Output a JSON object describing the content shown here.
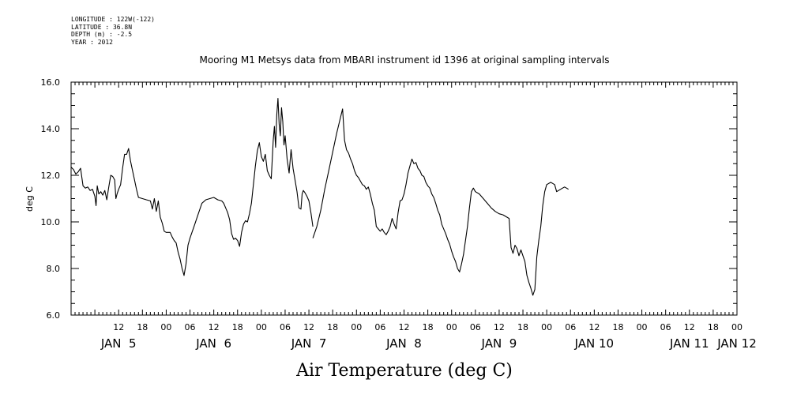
{
  "header": {
    "lines": [
      "LONGITUDE : 122W(-122)",
      "LATITUDE : 36.8N",
      "DEPTH (m) : -2.5",
      "YEAR : 2012"
    ]
  },
  "chart_data": {
    "type": "line",
    "title": "Mooring M1 Metsys data from MBARI instrument id 1396 at original sampling intervals",
    "xlabel": "Air Temperature (deg C)",
    "ylabel": "deg C",
    "ylim": [
      6.0,
      16.0
    ],
    "xlim_hours": [
      96,
      264
    ],
    "y_ticks": [
      "6.0",
      "8.0",
      "10.0",
      "12.0",
      "14.0",
      "16.0"
    ],
    "x_hour_ticks": [
      {
        "h": 108,
        "label": "12"
      },
      {
        "h": 114,
        "label": "18"
      },
      {
        "h": 120,
        "label": "00"
      },
      {
        "h": 126,
        "label": "06"
      },
      {
        "h": 132,
        "label": "12"
      },
      {
        "h": 138,
        "label": "18"
      },
      {
        "h": 144,
        "label": "00"
      },
      {
        "h": 150,
        "label": "06"
      },
      {
        "h": 156,
        "label": "12"
      },
      {
        "h": 162,
        "label": "18"
      },
      {
        "h": 168,
        "label": "00"
      },
      {
        "h": 174,
        "label": "06"
      },
      {
        "h": 180,
        "label": "12"
      },
      {
        "h": 186,
        "label": "18"
      },
      {
        "h": 192,
        "label": "00"
      },
      {
        "h": 198,
        "label": "06"
      },
      {
        "h": 204,
        "label": "12"
      },
      {
        "h": 210,
        "label": "18"
      },
      {
        "h": 216,
        "label": "00"
      },
      {
        "h": 222,
        "label": "06"
      },
      {
        "h": 228,
        "label": "12"
      },
      {
        "h": 234,
        "label": "18"
      },
      {
        "h": 240,
        "label": "00"
      },
      {
        "h": 246,
        "label": "06"
      },
      {
        "h": 252,
        "label": "12"
      },
      {
        "h": 258,
        "label": "18"
      },
      {
        "h": 264,
        "label": "00"
      }
    ],
    "x_day_labels": [
      {
        "h": 108,
        "label": "JAN  5"
      },
      {
        "h": 132,
        "label": "JAN  6"
      },
      {
        "h": 156,
        "label": "JAN  7"
      },
      {
        "h": 180,
        "label": "JAN  8"
      },
      {
        "h": 204,
        "label": "JAN  9"
      },
      {
        "h": 228,
        "label": "JAN 10"
      },
      {
        "h": 252,
        "label": "JAN 11"
      },
      {
        "h": 264,
        "label": "JAN 12"
      }
    ],
    "series": [
      {
        "line_color": "#000000",
        "segments": [
          [
            [
              96.0,
              12.35
            ],
            [
              96.6,
              12.25
            ],
            [
              97.2,
              12.05
            ],
            [
              97.8,
              12.15
            ],
            [
              98.4,
              12.3
            ],
            [
              99.0,
              11.55
            ],
            [
              99.6,
              11.45
            ],
            [
              100.2,
              11.5
            ],
            [
              100.8,
              11.35
            ],
            [
              101.4,
              11.4
            ],
            [
              102.0,
              11.1
            ],
            [
              102.3,
              10.7
            ],
            [
              102.6,
              11.55
            ],
            [
              103.0,
              11.2
            ],
            [
              103.5,
              11.3
            ],
            [
              104.0,
              11.15
            ],
            [
              104.5,
              11.35
            ],
            [
              105.0,
              10.95
            ],
            [
              105.5,
              11.5
            ],
            [
              106.0,
              12.0
            ],
            [
              106.5,
              11.95
            ],
            [
              107.0,
              11.8
            ],
            [
              107.3,
              11.0
            ],
            [
              107.6,
              11.2
            ],
            [
              108.0,
              11.4
            ],
            [
              108.5,
              11.6
            ],
            [
              109.0,
              12.3
            ],
            [
              109.5,
              12.9
            ],
            [
              110.0,
              12.9
            ],
            [
              110.5,
              13.15
            ],
            [
              111.0,
              12.6
            ],
            [
              111.5,
              12.2
            ],
            [
              112.0,
              11.8
            ],
            [
              112.5,
              11.4
            ],
            [
              113.0,
              11.05
            ],
            [
              114.0,
              11.0
            ],
            [
              115.0,
              10.95
            ],
            [
              116.0,
              10.9
            ],
            [
              116.5,
              10.55
            ],
            [
              117.0,
              11.0
            ],
            [
              117.5,
              10.45
            ],
            [
              118.0,
              10.9
            ],
            [
              118.5,
              10.2
            ],
            [
              119.0,
              9.95
            ],
            [
              119.5,
              9.6
            ],
            [
              120.0,
              9.55
            ],
            [
              121.0,
              9.55
            ],
            [
              121.5,
              9.35
            ],
            [
              122.0,
              9.2
            ],
            [
              122.5,
              9.1
            ],
            [
              123.0,
              8.7
            ],
            [
              123.5,
              8.4
            ],
            [
              124.0,
              8.0
            ],
            [
              124.5,
              7.7
            ],
            [
              125.0,
              8.2
            ],
            [
              125.5,
              9.0
            ],
            [
              126.0,
              9.3
            ],
            [
              127.0,
              9.8
            ],
            [
              128.0,
              10.3
            ],
            [
              129.0,
              10.8
            ],
            [
              130.0,
              10.95
            ],
            [
              131.0,
              11.0
            ],
            [
              132.0,
              11.05
            ],
            [
              133.0,
              10.95
            ],
            [
              134.0,
              10.9
            ],
            [
              134.5,
              10.8
            ],
            [
              135.0,
              10.6
            ],
            [
              135.5,
              10.4
            ],
            [
              136.0,
              10.1
            ],
            [
              136.5,
              9.5
            ],
            [
              137.0,
              9.25
            ],
            [
              137.5,
              9.3
            ],
            [
              138.0,
              9.2
            ],
            [
              138.5,
              8.95
            ],
            [
              139.0,
              9.55
            ],
            [
              139.5,
              9.9
            ],
            [
              140.0,
              10.05
            ],
            [
              140.5,
              10.0
            ],
            [
              141.0,
              10.35
            ],
            [
              141.5,
              10.8
            ],
            [
              142.0,
              11.6
            ],
            [
              142.5,
              12.4
            ],
            [
              143.0,
              13.05
            ],
            [
              143.5,
              13.4
            ],
            [
              144.0,
              12.8
            ],
            [
              144.5,
              12.6
            ],
            [
              145.0,
              12.9
            ],
            [
              145.5,
              12.2
            ],
            [
              146.0,
              12.0
            ],
            [
              146.5,
              11.85
            ],
            [
              147.0,
              13.5
            ],
            [
              147.3,
              14.1
            ],
            [
              147.6,
              13.2
            ],
            [
              147.9,
              14.6
            ],
            [
              148.2,
              15.3
            ],
            [
              148.5,
              14.2
            ],
            [
              148.8,
              13.7
            ],
            [
              149.1,
              14.9
            ],
            [
              149.4,
              14.3
            ],
            [
              149.7,
              13.3
            ],
            [
              150.0,
              13.7
            ],
            [
              150.5,
              12.7
            ],
            [
              151.0,
              12.1
            ],
            [
              151.5,
              13.1
            ],
            [
              152.0,
              12.3
            ],
            [
              152.5,
              11.8
            ],
            [
              153.0,
              11.3
            ],
            [
              153.5,
              10.6
            ],
            [
              154.0,
              10.55
            ],
            [
              154.3,
              11.2
            ],
            [
              154.6,
              11.35
            ],
            [
              155.0,
              11.25
            ],
            [
              155.5,
              11.1
            ],
            [
              156.0,
              10.9
            ],
            [
              156.5,
              10.4
            ],
            [
              157.0,
              9.8
            ]
          ],
          [
            [
              157.0,
              9.3
            ],
            [
              158.0,
              9.8
            ],
            [
              159.0,
              10.5
            ],
            [
              160.0,
              11.4
            ],
            [
              161.0,
              12.2
            ],
            [
              162.0,
              13.0
            ],
            [
              163.0,
              13.8
            ],
            [
              164.0,
              14.5
            ],
            [
              164.5,
              14.85
            ],
            [
              165.0,
              13.5
            ],
            [
              165.5,
              13.1
            ],
            [
              166.0,
              12.95
            ],
            [
              166.5,
              12.7
            ],
            [
              167.0,
              12.5
            ],
            [
              167.5,
              12.2
            ],
            [
              168.0,
              12.0
            ],
            [
              168.5,
              11.9
            ],
            [
              169.0,
              11.75
            ],
            [
              169.5,
              11.6
            ],
            [
              170.0,
              11.55
            ],
            [
              170.5,
              11.4
            ],
            [
              171.0,
              11.5
            ],
            [
              171.5,
              11.2
            ],
            [
              172.0,
              10.8
            ],
            [
              172.5,
              10.5
            ],
            [
              173.0,
              9.8
            ],
            [
              173.5,
              9.7
            ],
            [
              174.0,
              9.6
            ],
            [
              174.5,
              9.7
            ],
            [
              175.0,
              9.55
            ],
            [
              175.5,
              9.45
            ],
            [
              176.0,
              9.6
            ],
            [
              176.5,
              9.8
            ],
            [
              177.0,
              10.15
            ],
            [
              177.5,
              9.9
            ],
            [
              178.0,
              9.7
            ],
            [
              178.5,
              10.4
            ],
            [
              179.0,
              10.9
            ],
            [
              179.5,
              10.95
            ],
            [
              180.0,
              11.2
            ],
            [
              180.5,
              11.6
            ],
            [
              181.0,
              12.1
            ],
            [
              181.5,
              12.4
            ],
            [
              182.0,
              12.7
            ],
            [
              182.5,
              12.5
            ],
            [
              183.0,
              12.55
            ],
            [
              183.5,
              12.3
            ],
            [
              184.0,
              12.2
            ],
            [
              184.5,
              12.0
            ],
            [
              185.0,
              11.95
            ],
            [
              185.5,
              11.7
            ],
            [
              186.0,
              11.55
            ],
            [
              186.5,
              11.45
            ],
            [
              187.0,
              11.2
            ],
            [
              187.5,
              11.05
            ],
            [
              188.0,
              10.8
            ],
            [
              188.5,
              10.5
            ],
            [
              189.0,
              10.3
            ],
            [
              189.5,
              9.9
            ],
            [
              190.0,
              9.7
            ],
            [
              190.5,
              9.5
            ],
            [
              191.0,
              9.25
            ],
            [
              191.5,
              9.05
            ],
            [
              192.0,
              8.75
            ],
            [
              192.5,
              8.5
            ],
            [
              193.0,
              8.3
            ],
            [
              193.5,
              8.0
            ],
            [
              194.0,
              7.85
            ],
            [
              194.5,
              8.2
            ],
            [
              195.0,
              8.6
            ],
            [
              195.5,
              9.2
            ],
            [
              196.0,
              9.8
            ],
            [
              196.5,
              10.6
            ],
            [
              197.0,
              11.3
            ],
            [
              197.5,
              11.45
            ],
            [
              198.0,
              11.3
            ],
            [
              199.0,
              11.2
            ],
            [
              200.0,
              11.0
            ],
            [
              201.0,
              10.8
            ],
            [
              202.0,
              10.6
            ],
            [
              203.0,
              10.45
            ],
            [
              204.0,
              10.35
            ],
            [
              205.0,
              10.3
            ],
            [
              206.0,
              10.2
            ],
            [
              206.5,
              10.15
            ],
            [
              207.0,
              8.9
            ],
            [
              207.5,
              8.65
            ],
            [
              208.0,
              9.0
            ],
            [
              208.5,
              8.85
            ],
            [
              209.0,
              8.55
            ],
            [
              209.5,
              8.8
            ],
            [
              210.0,
              8.55
            ],
            [
              210.5,
              8.3
            ],
            [
              211.0,
              7.7
            ],
            [
              211.5,
              7.4
            ],
            [
              212.0,
              7.15
            ],
            [
              212.5,
              6.85
            ],
            [
              213.0,
              7.1
            ],
            [
              213.5,
              8.5
            ],
            [
              214.0,
              9.2
            ],
            [
              214.5,
              9.8
            ],
            [
              215.0,
              10.7
            ],
            [
              215.5,
              11.3
            ],
            [
              216.0,
              11.6
            ],
            [
              217.0,
              11.7
            ],
            [
              217.5,
              11.65
            ],
            [
              218.0,
              11.6
            ],
            [
              218.5,
              11.3
            ],
            [
              219.0,
              11.35
            ],
            [
              219.5,
              11.4
            ],
            [
              220.0,
              11.45
            ],
            [
              220.5,
              11.5
            ],
            [
              221.0,
              11.45
            ],
            [
              221.5,
              11.4
            ]
          ]
        ]
      }
    ]
  }
}
